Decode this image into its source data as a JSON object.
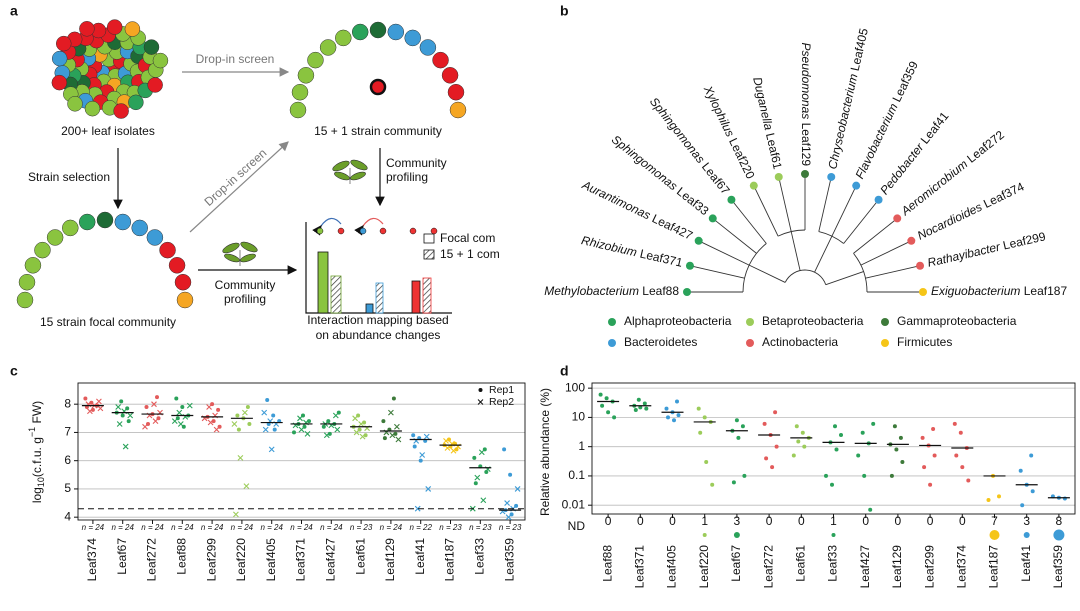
{
  "panel_a": {
    "label": "a",
    "isolates": "200+ leaf isolates",
    "dropin_1": "Drop-in screen",
    "dropin_2": "Drop-in screen",
    "community_16": "15 + 1 strain community",
    "selection": "Strain selection",
    "profiling_1": [
      "Community",
      "profiling"
    ],
    "profiling_2": [
      "Community",
      "profiling"
    ],
    "focal": "15 strain focal community",
    "legend_focal": "Focal com",
    "legend_16": "15 + 1 com",
    "mapping": [
      "Interaction mapping based",
      "on abundance changes"
    ]
  },
  "panel_b": {
    "label": "b",
    "leaves": [
      {
        "genus": "Methylobacterium",
        "strain": "Leaf88",
        "color": "#2aa25a"
      },
      {
        "genus": "Rhizobium",
        "strain": "Leaf371",
        "color": "#2aa25a"
      },
      {
        "genus": "Aurantimonas",
        "strain": "Leaf427",
        "color": "#2aa25a"
      },
      {
        "genus": "Sphingomonas",
        "strain": "Leaf33",
        "color": "#2aa25a"
      },
      {
        "genus": "Sphingomonas",
        "strain": "Leaf67",
        "color": "#2aa25a"
      },
      {
        "genus": "Xylophilus",
        "strain": "Leaf220",
        "color": "#9ccc5a"
      },
      {
        "genus": "Duganella",
        "strain": "Leaf61",
        "color": "#9ccc5a"
      },
      {
        "genus": "Pseudomonas",
        "strain": "Leaf129",
        "color": "#3d7a3a"
      },
      {
        "genus": "Chryseobacterium",
        "strain": "Leaf405",
        "color": "#3d9bd6"
      },
      {
        "genus": "Flavobacterium",
        "strain": "Leaf359",
        "color": "#3d9bd6"
      },
      {
        "genus": "Pedobacter",
        "strain": "Leaf41",
        "color": "#3d9bd6"
      },
      {
        "genus": "Aeromicrobium",
        "strain": "Leaf272",
        "color": "#e35b5b"
      },
      {
        "genus": "Nocardioides",
        "strain": "Leaf374",
        "color": "#e35b5b"
      },
      {
        "genus": "Rathayibacter",
        "strain": "Leaf299",
        "color": "#e35b5b"
      },
      {
        "genus": "Exiguobacterium",
        "strain": "Leaf187",
        "color": "#f5c518"
      }
    ],
    "classes": [
      {
        "name": "Alphaproteobacteria",
        "color": "#2aa25a"
      },
      {
        "name": "Betaproteobacteria",
        "color": "#9ccc5a"
      },
      {
        "name": "Gammaproteobacteria",
        "color": "#3d7a3a"
      },
      {
        "name": "Bacteroidetes",
        "color": "#3d9bd6"
      },
      {
        "name": "Actinobacteria",
        "color": "#e35b5b"
      },
      {
        "name": "Firmicutes",
        "color": "#f5c518"
      }
    ]
  },
  "panel_c": {
    "label": "c",
    "type": "strip",
    "ylabel": [
      "log",
      "10",
      "(c.f.u. g",
      "−1",
      " FW)"
    ],
    "ylim": [
      3.9,
      8.75
    ],
    "yticks": [
      4,
      5,
      6,
      7,
      8
    ],
    "grid": true,
    "detection_limit": 4.3,
    "categories": [
      "Leaf374",
      "Leaf67",
      "Leaf272",
      "Leaf88",
      "Leaf299",
      "Leaf220",
      "Leaf405",
      "Leaf371",
      "Leaf427",
      "Leaf61",
      "Leaf129",
      "Leaf41",
      "Leaf187",
      "Leaf33",
      "Leaf359"
    ],
    "colors": [
      "#e35b5b",
      "#2aa25a",
      "#e35b5b",
      "#2aa25a",
      "#e35b5b",
      "#9ccc5a",
      "#3d9bd6",
      "#2aa25a",
      "#2aa25a",
      "#9ccc5a",
      "#3d7a3a",
      "#3d9bd6",
      "#f5c518",
      "#2aa25a",
      "#3d9bd6"
    ],
    "medians": [
      7.95,
      7.7,
      7.65,
      7.6,
      7.55,
      7.5,
      7.35,
      7.3,
      7.3,
      7.2,
      7.05,
      6.75,
      6.55,
      5.75,
      4.25
    ],
    "n_labels": [
      "n = 24",
      "n = 24",
      "n = 24",
      "n = 24",
      "n = 24",
      "n = 24",
      "n = 24",
      "n = 24",
      "n = 24",
      "n = 23",
      "n = 24",
      "n = 22",
      "n = 23",
      "n = 23",
      "n = 23"
    ],
    "series": [
      {
        "name": "Rep1",
        "marker": "dot",
        "values": [
          [
            8.2,
            8.05,
            7.95,
            7.9,
            7.8
          ],
          [
            8.1,
            7.85,
            7.7,
            7.6,
            7.4
          ],
          [
            8.25,
            7.9,
            7.65,
            7.5,
            7.3
          ],
          [
            8.2,
            7.9,
            7.6,
            7.5,
            7.2
          ],
          [
            8.0,
            7.8,
            7.55,
            7.4,
            7.2
          ],
          [
            7.9,
            7.6,
            7.5,
            7.3,
            7.1
          ],
          [
            8.15,
            7.6,
            7.4,
            7.3,
            7.1
          ],
          [
            7.6,
            7.4,
            7.3,
            7.2,
            7.0
          ],
          [
            7.7,
            7.4,
            7.3,
            7.2,
            6.95
          ],
          [
            7.6,
            7.35,
            7.2,
            7.1,
            6.9
          ],
          [
            8.2,
            7.4,
            7.1,
            6.95,
            6.8
          ],
          [
            6.9,
            6.8,
            6.7,
            6.5,
            6.0
          ],
          [
            6.75,
            6.6,
            6.55,
            6.5,
            6.4
          ],
          [
            6.4,
            6.1,
            5.8,
            5.6,
            5.2
          ],
          [
            6.4,
            5.5,
            4.4,
            4.25,
            4.1
          ]
        ]
      },
      {
        "name": "Rep2",
        "marker": "cross",
        "values": [
          [
            8.1,
            8.0,
            7.95,
            7.85,
            7.75
          ],
          [
            7.9,
            7.75,
            7.6,
            7.3,
            6.5
          ],
          [
            8.0,
            7.7,
            7.6,
            7.4,
            7.2
          ],
          [
            7.95,
            7.7,
            7.55,
            7.4,
            7.3
          ],
          [
            7.9,
            7.6,
            7.5,
            7.35,
            7.1
          ],
          [
            7.7,
            7.3,
            6.1,
            5.1,
            4.1
          ],
          [
            7.7,
            7.4,
            7.3,
            7.1,
            6.4
          ],
          [
            7.5,
            7.35,
            7.25,
            7.1,
            6.95
          ],
          [
            7.6,
            7.3,
            7.25,
            7.1,
            6.9
          ],
          [
            7.5,
            7.3,
            7.15,
            7.0,
            6.85
          ],
          [
            7.7,
            7.2,
            7.0,
            6.9,
            6.75
          ],
          [
            6.85,
            6.7,
            6.2,
            5.0,
            4.3
          ],
          [
            6.7,
            6.6,
            6.5,
            6.45,
            6.35
          ],
          [
            6.3,
            5.7,
            5.4,
            4.6,
            4.3
          ],
          [
            5.0,
            4.5,
            4.3,
            4.2,
            4.0
          ]
        ]
      }
    ]
  },
  "panel_d": {
    "label": "d",
    "type": "strip",
    "log": true,
    "ylabel": "Relative abundance (%)",
    "ylim": [
      0.005,
      150
    ],
    "yticks": [
      100,
      10,
      1,
      0.1,
      0.01
    ],
    "grid": true,
    "nd_label": "ND",
    "categories": [
      "Leaf88",
      "Leaf371",
      "Leaf405",
      "Leaf220",
      "Leaf67",
      "Leaf272",
      "Leaf61",
      "Leaf33",
      "Leaf427",
      "Leaf129",
      "Leaf299",
      "Leaf374",
      "Leaf187",
      "Leaf41",
      "Leaf359"
    ],
    "colors": [
      "#2aa25a",
      "#2aa25a",
      "#3d9bd6",
      "#9ccc5a",
      "#2aa25a",
      "#e35b5b",
      "#9ccc5a",
      "#2aa25a",
      "#2aa25a",
      "#3d7a3a",
      "#e35b5b",
      "#e35b5b",
      "#f5c518",
      "#3d9bd6",
      "#3d9bd6"
    ],
    "medians": [
      35,
      25,
      15,
      7,
      3.5,
      2.5,
      2,
      1.4,
      1.3,
      1.2,
      1.1,
      0.9,
      0.1,
      0.05,
      0.018
    ],
    "nd_counts": [
      0,
      0,
      0,
      1,
      3,
      0,
      0,
      1,
      0,
      0,
      0,
      0,
      7,
      3,
      8
    ],
    "values": [
      [
        60,
        45,
        35,
        25,
        15,
        10
      ],
      [
        40,
        30,
        25,
        22,
        20,
        18
      ],
      [
        35,
        20,
        15,
        12,
        10,
        8
      ],
      [
        20,
        10,
        7,
        3,
        0.3,
        0.05
      ],
      [
        8,
        5,
        3.5,
        2,
        0.1,
        0.06
      ],
      [
        15,
        6,
        2.5,
        1,
        0.4,
        0.2
      ],
      [
        5,
        3,
        2,
        1.5,
        1,
        0.5
      ],
      [
        5,
        2.5,
        1.4,
        0.8,
        0.1,
        0.05
      ],
      [
        6,
        3,
        1.3,
        0.5,
        0.1,
        0.007
      ],
      [
        5,
        2,
        1.2,
        0.8,
        0.3,
        0.1
      ],
      [
        4,
        2,
        1.1,
        0.5,
        0.2,
        0.05
      ],
      [
        6,
        3,
        0.9,
        0.5,
        0.2,
        0.07
      ],
      [
        0.1,
        0.02,
        0.015
      ],
      [
        0.5,
        0.15,
        0.05,
        0.03,
        0.01
      ],
      [
        0.02,
        0.018,
        0.017
      ]
    ]
  }
}
